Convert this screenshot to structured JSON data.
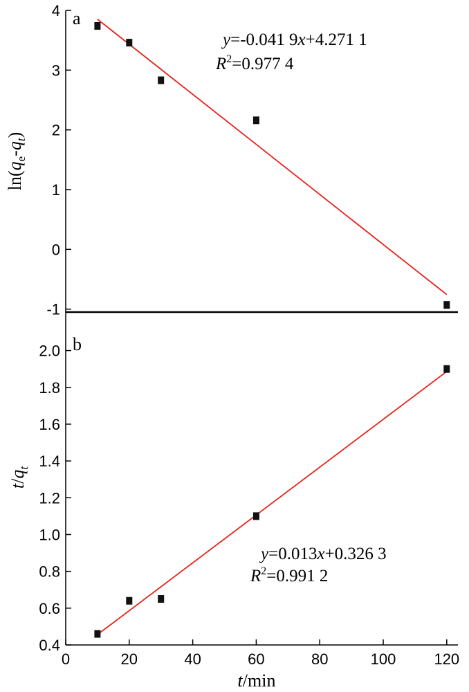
{
  "chart_data": [
    {
      "type": "scatter",
      "panel_label": "a",
      "title": "",
      "xlabel": "",
      "ylabel": "ln(qe-qt)",
      "ylabel_parts": {
        "prefix": "ln(",
        "v1": "q",
        "s1": "e",
        "dash": "-",
        "v2": "q",
        "s2": "t",
        "suffix": ")"
      },
      "xlim": [
        0,
        122
      ],
      "ylim": [
        -1.05,
        4
      ],
      "yticks": [
        -1,
        0,
        1,
        2,
        3,
        4
      ],
      "yticklabels": [
        "-1",
        "0",
        "1",
        "2",
        "3",
        "4"
      ],
      "points": [
        {
          "x": 10,
          "y": 3.74
        },
        {
          "x": 20,
          "y": 3.46
        },
        {
          "x": 30,
          "y": 2.83
        },
        {
          "x": 60,
          "y": 2.16
        },
        {
          "x": 120,
          "y": -0.93
        }
      ],
      "fit": {
        "slope": -0.0419,
        "intercept": 4.2711,
        "x_range": [
          10,
          120
        ],
        "color": "#e8211d"
      },
      "equation": {
        "y": "y",
        "eq1": "=-0.041 9",
        "x": "x",
        "eq2": "+4.271 1",
        "R": "R",
        "sup": "2",
        "req": "=0.977 4"
      },
      "grid": false,
      "marker_color": "#111111"
    },
    {
      "type": "scatter",
      "panel_label": "b",
      "title": "",
      "xlabel": "t/min",
      "xlabel_parts": {
        "v": "t",
        "rest": "/min"
      },
      "ylabel": "t/qt",
      "ylabel_parts": {
        "v1": "t",
        "slash": "/",
        "v2": "q",
        "sub": "t"
      },
      "xlim": [
        0,
        122
      ],
      "ylim": [
        0.4,
        2.1
      ],
      "xticks": [
        0,
        20,
        40,
        60,
        80,
        100,
        120
      ],
      "xticklabels": [
        "0",
        "20",
        "40",
        "60",
        "80",
        "100",
        "120"
      ],
      "yticks": [
        0.4,
        0.6,
        0.8,
        1.0,
        1.2,
        1.4,
        1.6,
        1.8,
        2.0
      ],
      "yticklabels": [
        "0.4",
        "0.6",
        "0.8",
        "1.0",
        "1.2",
        "1.4",
        "1.6",
        "1.8",
        "2.0"
      ],
      "points": [
        {
          "x": 10,
          "y": 0.46
        },
        {
          "x": 20,
          "y": 0.64
        },
        {
          "x": 30,
          "y": 0.65
        },
        {
          "x": 60,
          "y": 1.1
        },
        {
          "x": 120,
          "y": 1.9
        }
      ],
      "fit": {
        "slope": 0.013,
        "intercept": 0.3263,
        "x_range": [
          10,
          120
        ],
        "color": "#e8211d"
      },
      "equation": {
        "y": "y",
        "eq1": "=0.013",
        "x": "x",
        "eq2": "+0.326 3",
        "R": "R",
        "sup": "2",
        "req": "=0.991 2"
      },
      "grid": false,
      "marker_color": "#111111"
    }
  ]
}
